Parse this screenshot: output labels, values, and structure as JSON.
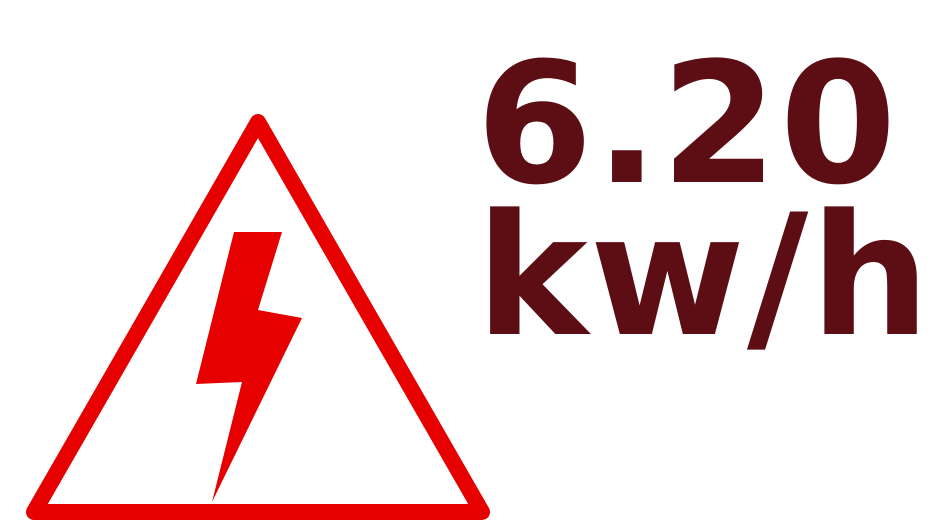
{
  "value": "6.20",
  "unit": "kw/h"
}
